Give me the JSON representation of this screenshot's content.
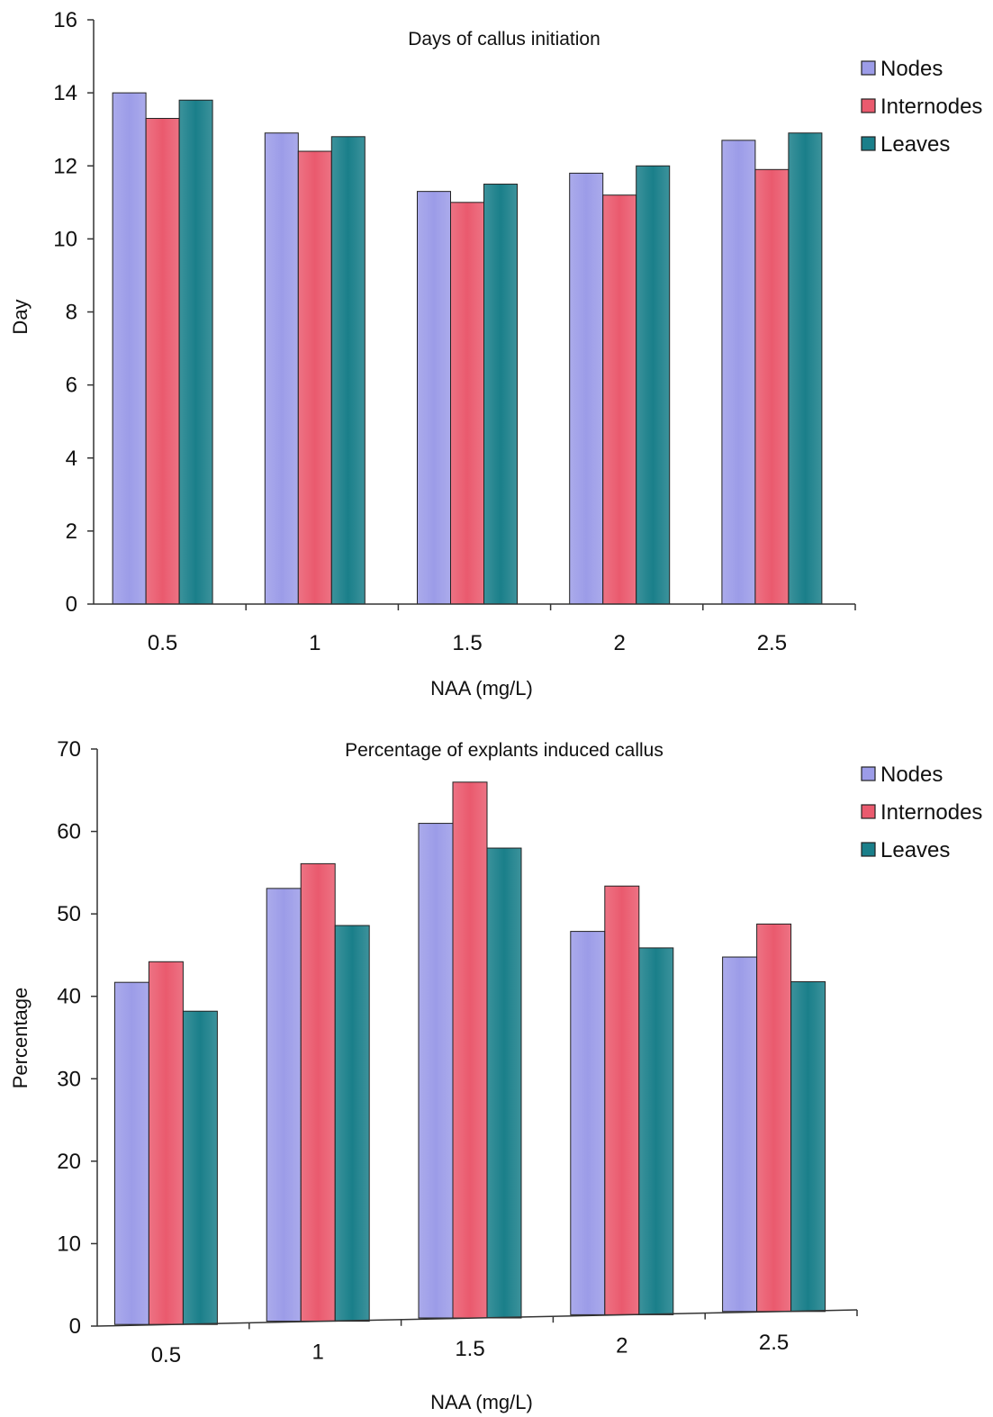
{
  "chart_data": [
    {
      "type": "bar",
      "title": "Days of callus initiation",
      "xlabel": "NAA (mg/L)",
      "ylabel": "Day",
      "categories": [
        "0.5",
        "1",
        "1.5",
        "2",
        "2.5"
      ],
      "ylim": [
        0,
        16
      ],
      "yticks": [
        "0",
        "2",
        "4",
        "6",
        "8",
        "10",
        "12",
        "14",
        "16"
      ],
      "legend_position": "top-right",
      "grid": false,
      "series": [
        {
          "name": "Nodes",
          "color": "#9c9ce8",
          "values": [
            14.0,
            12.9,
            11.3,
            11.8,
            12.7
          ]
        },
        {
          "name": "Internodes",
          "color": "#ea5a6e",
          "values": [
            13.3,
            12.4,
            11.0,
            11.2,
            11.9
          ]
        },
        {
          "name": "Leaves",
          "color": "#1a7f8a",
          "values": [
            13.8,
            12.8,
            11.5,
            12.0,
            12.9
          ]
        }
      ]
    },
    {
      "type": "bar",
      "title": "Percentage of explants induced callus",
      "xlabel": "NAA (mg/L)",
      "ylabel": "Percentage",
      "categories": [
        "0.5",
        "1",
        "1.5",
        "2",
        "2.5"
      ],
      "ylim": [
        0,
        70
      ],
      "yticks": [
        "0",
        "10",
        "20",
        "30",
        "40",
        "50",
        "60",
        "70"
      ],
      "legend_position": "top-right",
      "grid": false,
      "series": [
        {
          "name": "Nodes",
          "color": "#9c9ce8",
          "values": [
            41.5,
            52.5,
            60.0,
            46.5,
            43.0
          ]
        },
        {
          "name": "Internodes",
          "color": "#ea5a6e",
          "values": [
            44.0,
            55.5,
            65.0,
            52.0,
            47.0
          ]
        },
        {
          "name": "Leaves",
          "color": "#1a7f8a",
          "values": [
            38.0,
            48.0,
            57.0,
            44.5,
            40.0
          ]
        }
      ]
    }
  ]
}
